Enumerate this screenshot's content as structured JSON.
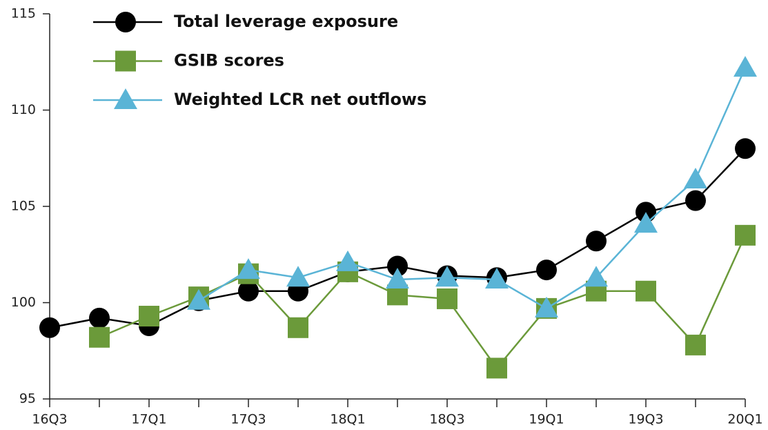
{
  "chart_data": {
    "type": "line",
    "categories": [
      "16Q3",
      null,
      "17Q1",
      null,
      "17Q3",
      null,
      "18Q1",
      null,
      "18Q3",
      null,
      "19Q1",
      null,
      "19Q3",
      null,
      "20Q1"
    ],
    "series": [
      {
        "name": "Total leverage exposure",
        "color": "#000000",
        "marker": "circle",
        "values": [
          98.7,
          99.2,
          98.8,
          100.1,
          100.6,
          100.6,
          101.6,
          101.9,
          101.4,
          101.3,
          101.7,
          103.2,
          104.7,
          105.3,
          108.0
        ]
      },
      {
        "name": "GSIB scores",
        "color": "#6b9a3a",
        "marker": "square",
        "values": [
          null,
          98.2,
          99.3,
          100.3,
          101.5,
          98.7,
          101.6,
          100.4,
          100.2,
          96.6,
          99.7,
          100.6,
          100.6,
          97.8,
          103.5
        ]
      },
      {
        "name": "Weighted LCR net outflows",
        "color": "#5ab4d6",
        "marker": "triangle",
        "values": [
          null,
          null,
          null,
          100.1,
          101.7,
          101.3,
          102.1,
          101.2,
          101.3,
          101.2,
          99.7,
          101.3,
          104.1,
          106.4,
          112.2
        ]
      }
    ],
    "ylim": [
      95,
      115
    ],
    "yticks": [
      95,
      100,
      105,
      110,
      115
    ],
    "grid": false,
    "legend": "top-left"
  }
}
